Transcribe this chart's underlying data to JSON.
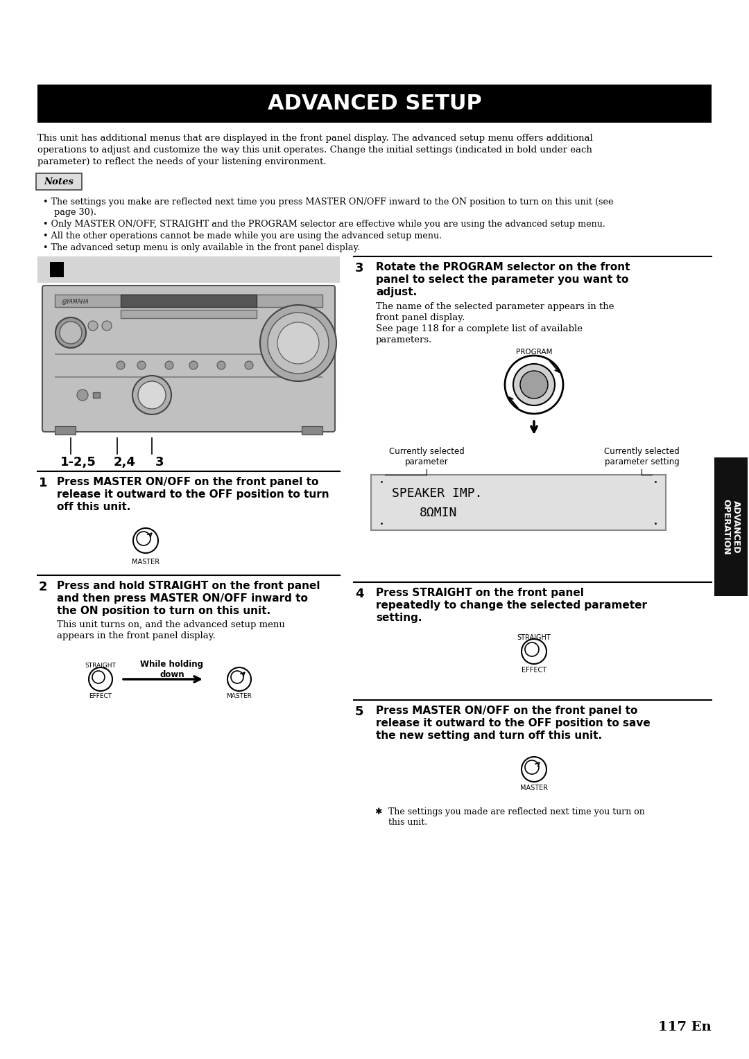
{
  "title": "ADVANCED SETUP",
  "bg_color": "#ffffff",
  "title_bg": "#000000",
  "title_color": "#ffffff",
  "title_fontsize": 22,
  "page_number": "117 En",
  "sidebar_text": "ADVANCED\nOPERATION",
  "sidebar_bg": "#111111",
  "intro_text1": "This unit has additional menus that are displayed in the front panel display. The advanced setup menu offers additional",
  "intro_text2": "operations to adjust and customize the way this unit operates. Change the initial settings (indicated in bold under each",
  "intro_text3": "parameter) to reflect the needs of your listening environment.",
  "notes_label": "Notes",
  "bullet1a": "The settings you make are reflected next time you press MASTER ON/OFF inward to the ON position to turn on this unit (see",
  "bullet1b": "  page 30).",
  "bullet2": "Only MASTER ON/OFF, STRAIGHT and the PROGRAM selector are effective while you are using the advanced setup menu.",
  "bullet3": "All the other operations cannot be made while you are using the advanced setup menu.",
  "bullet4": "The advanced setup menu is only available in the front panel display.",
  "s1_num": "1",
  "s1_t1": "Press MASTER ON/OFF on the front panel to",
  "s1_t2": "release it outward to the OFF position to turn",
  "s1_t3": "off this unit.",
  "s2_num": "2",
  "s2_t1": "Press and hold STRAIGHT on the front panel",
  "s2_t2": "and then press MASTER ON/OFF inward to",
  "s2_t3": "the ON position to turn on this unit.",
  "s2_n1": "This unit turns on, and the advanced setup menu",
  "s2_n2": "appears in the front panel display.",
  "s2_ann": "While holding\ndown",
  "s3_num": "3",
  "s3_t1": "Rotate the PROGRAM selector on the front",
  "s3_t2": "panel to select the parameter you want to",
  "s3_t3": "adjust.",
  "s3_n1": "The name of the selected parameter appears in the",
  "s3_n2": "front panel display.",
  "s3_n3": "See page 118 for a complete list of available",
  "s3_n4": "parameters.",
  "s4_num": "4",
  "s4_t1": "Press STRAIGHT on the front panel",
  "s4_t2": "repeatedly to change the selected parameter",
  "s4_t3": "setting.",
  "s5_num": "5",
  "s5_t1": "Press MASTER ON/OFF on the front panel to",
  "s5_t2": "release it outward to the OFF position to save",
  "s5_t3": "the new setting and turn off this unit.",
  "s5_note1": "The settings you made are reflected next time you turn on",
  "s5_note2": "this unit.",
  "disp1": "SPEAKER IMP.",
  "disp2": "8ΩMIN",
  "cur_sel_param": "Currently selected\nparameter",
  "cur_sel_setting": "Currently selected\nparameter setting",
  "label_125": "1-2,5",
  "label_24": "2,4",
  "label_3": "3",
  "prog_lbl": "PROGRAM",
  "straight_lbl": "STRAIGHT",
  "effect_lbl": "EFFECT",
  "master_lbl": "MASTER"
}
